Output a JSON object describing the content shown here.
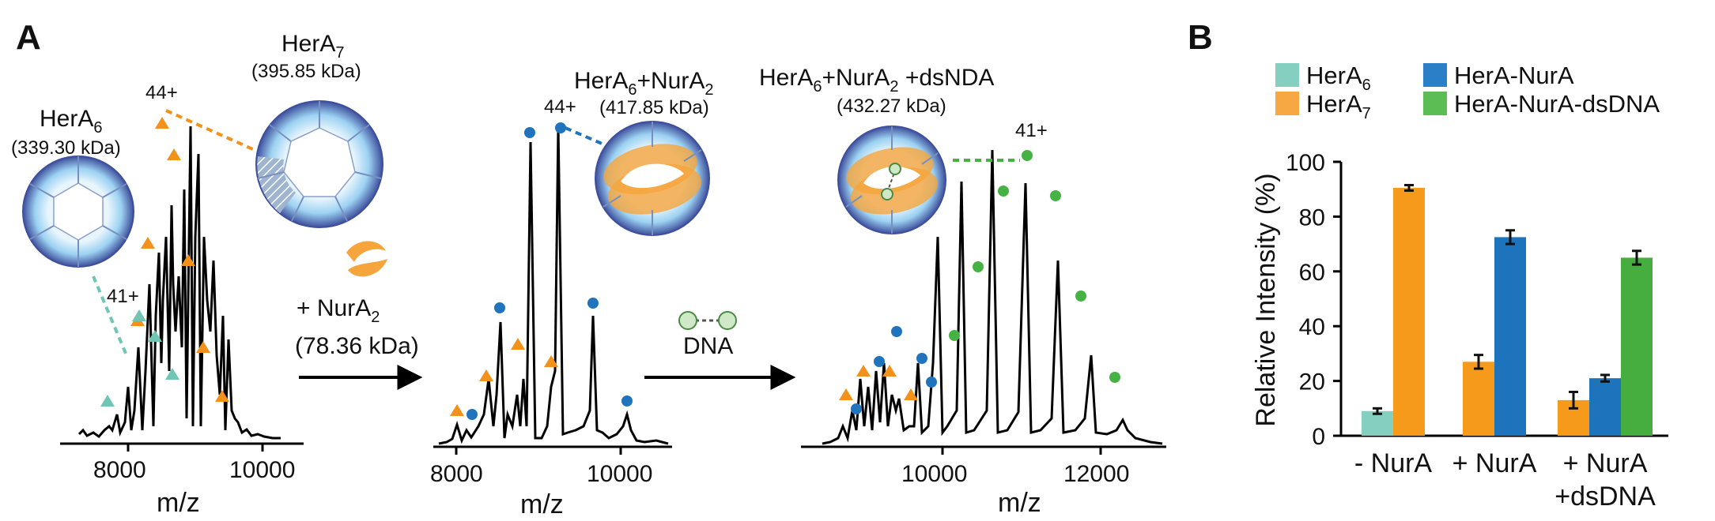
{
  "panel_a": {
    "letter": "A",
    "spectrum1": {
      "xticks": [
        "8000",
        "10000"
      ],
      "xlabel": "m/z",
      "complex_label_hera6": "HerA",
      "complex_label_hera6_sub": "6",
      "hera6_mass": "(339.30 kDa)",
      "complex_label_hera7": "HerA",
      "complex_label_hera7_sub": "7",
      "hera7_mass": "(395.85 kDa)",
      "charge_high": "44+",
      "charge_low": "41+"
    },
    "arrow1": {
      "label_prefix": "+ NurA",
      "label_sub": "2",
      "mass": "(78.36 kDa)"
    },
    "spectrum2": {
      "xticks": [
        "8000",
        "10000"
      ],
      "xlabel": "m/z",
      "complex_label": "HerA",
      "complex_label_sub1": "6",
      "complex_label_mid": "+NurA",
      "complex_label_sub2": "2",
      "mass": "(417.85 kDa)",
      "charge": "44+"
    },
    "arrow2": {
      "label": "DNA"
    },
    "spectrum3": {
      "xticks": [
        "10000",
        "12000"
      ],
      "xlabel": "m/z",
      "complex_label": "HerA",
      "complex_label_sub1": "6",
      "complex_label_mid": "+NurA",
      "complex_label_sub2": "2",
      "complex_label_end": " +dsNDA",
      "mass": "(432.27 kDa)",
      "charge": "41+"
    }
  },
  "panel_b": {
    "letter": "B",
    "legend": [
      {
        "label": "HerA",
        "sub": "6",
        "color": "#85cfc0"
      },
      {
        "label": "HerA",
        "sub": "7",
        "color": "#f7a842"
      },
      {
        "label": "HerA-NurA",
        "sub": "",
        "color": "#2a7fc6"
      },
      {
        "label": "HerA-NurA-dsDNA",
        "sub": "",
        "color": "#5cbd55"
      }
    ],
    "chart_data": {
      "type": "bar",
      "ylabel": "Relative Intensity (%)",
      "ylim": [
        0,
        100
      ],
      "yticks": [
        "0",
        "20",
        "40",
        "60",
        "80",
        "100"
      ],
      "categories": [
        {
          "line1": "- NurA",
          "line2": ""
        },
        {
          "line1": "+ NurA",
          "line2": ""
        },
        {
          "line1": "+ NurA",
          "line2": "+dsDNA"
        }
      ],
      "bars": [
        {
          "group": 0,
          "series": "HerA6",
          "value": 9,
          "error": 1.0,
          "color": "#85cfc0"
        },
        {
          "group": 0,
          "series": "HerA7",
          "value": 90.5,
          "error": 1.0,
          "color": "#f59a1a"
        },
        {
          "group": 1,
          "series": "HerA7",
          "value": 27,
          "error": 2.5,
          "color": "#f59a1a"
        },
        {
          "group": 1,
          "series": "HerA-NurA",
          "value": 72.5,
          "error": 2.5,
          "color": "#1d74bd"
        },
        {
          "group": 2,
          "series": "HerA7",
          "value": 13,
          "error": 3.0,
          "color": "#f59a1a"
        },
        {
          "group": 2,
          "series": "HerA-NurA",
          "value": 21,
          "error": 1.2,
          "color": "#1d74bd"
        },
        {
          "group": 2,
          "series": "HerA-NurA-dsDNA",
          "value": 65,
          "error": 2.5,
          "color": "#46ad3f"
        }
      ]
    }
  },
  "colors": {
    "hera6_marker": "#6fc6b4",
    "hera7_marker": "#f2921a",
    "nura_marker": "#1f74bd",
    "dna_marker": "#46b244",
    "ring_dark": "#3e4f9c",
    "ring_light": "#9cd2f2",
    "nura_blob": "#f5a53c"
  }
}
